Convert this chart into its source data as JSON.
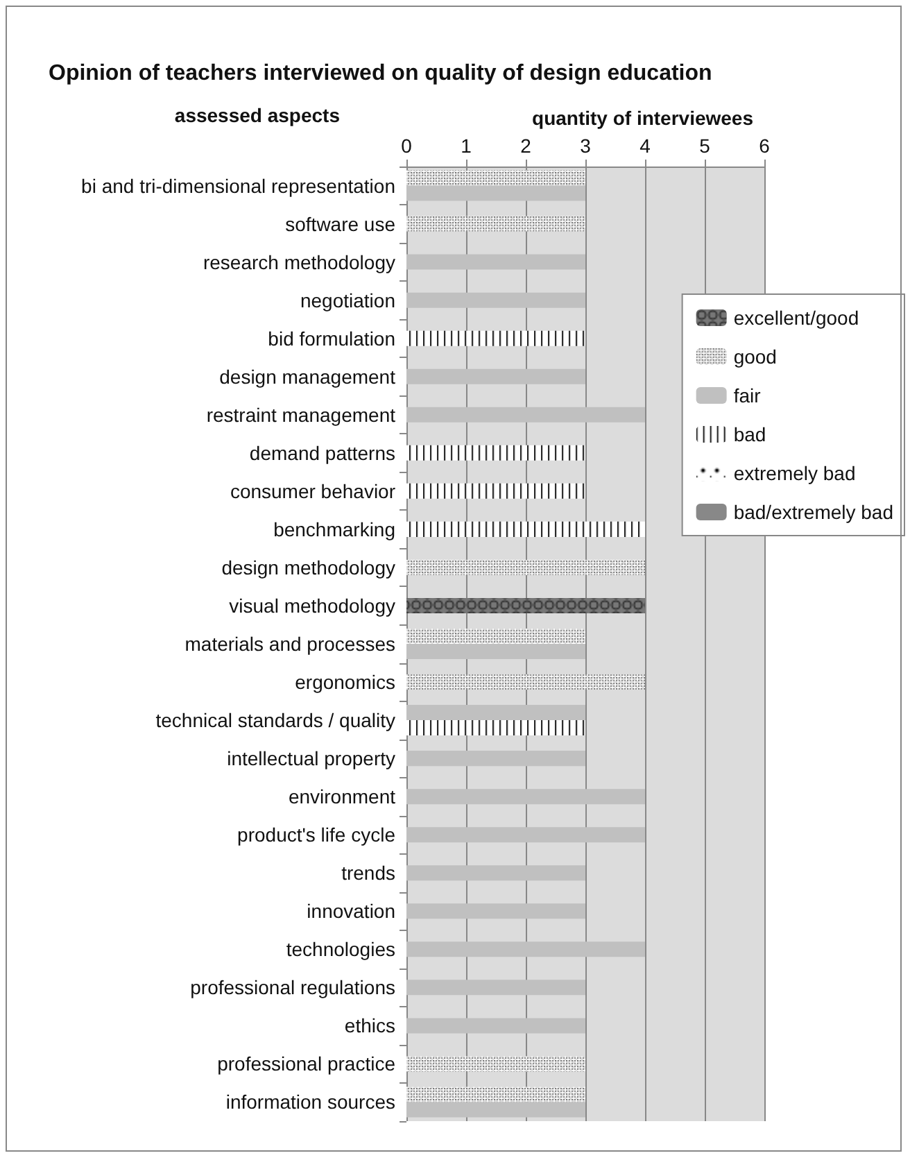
{
  "chart_data": {
    "type": "bar",
    "orientation": "horizontal",
    "title": "Opinion of teachers interviewed on quality of design education",
    "xlabel": "quantity of interviewees",
    "ylabel": "assessed aspects",
    "categories": [
      "bi and tri-dimensional representation",
      "software use",
      "research methodology",
      "negotiation",
      "bid formulation",
      "design management",
      "restraint management",
      "demand patterns",
      "consumer behavior",
      "benchmarking",
      "design methodology",
      "visual methodology",
      "materials and processes",
      "ergonomics",
      "technical standards / quality",
      "intellectual property",
      "environment",
      "product's life cycle",
      "trends",
      "innovation",
      "technologies",
      "professional regulations",
      "ethics",
      "professional practice",
      "information sources"
    ],
    "series": [
      {
        "name": "excellent/good",
        "color": "#777777",
        "values": [
          null,
          null,
          null,
          null,
          null,
          null,
          null,
          null,
          null,
          null,
          null,
          4,
          null,
          null,
          null,
          null,
          null,
          null,
          null,
          null,
          null,
          null,
          null,
          null,
          null
        ]
      },
      {
        "name": "good",
        "color": "#d8d8d8",
        "values": [
          3,
          3,
          null,
          null,
          null,
          null,
          null,
          null,
          null,
          null,
          4,
          null,
          3,
          4,
          null,
          null,
          null,
          null,
          null,
          null,
          null,
          null,
          null,
          3,
          3
        ]
      },
      {
        "name": "fair",
        "color": "#c0c0c0",
        "values": [
          3,
          null,
          3,
          3,
          null,
          3,
          4,
          null,
          null,
          null,
          null,
          null,
          3,
          null,
          3,
          3,
          4,
          4,
          3,
          3,
          4,
          3,
          3,
          null,
          3
        ]
      },
      {
        "name": "bad",
        "color": "#ffffff",
        "values": [
          null,
          null,
          null,
          null,
          3,
          null,
          null,
          3,
          3,
          4,
          null,
          null,
          null,
          null,
          3,
          null,
          null,
          null,
          null,
          null,
          null,
          null,
          null,
          null,
          null
        ]
      },
      {
        "name": "extremely bad",
        "color": "#ffffff",
        "values": [
          null,
          null,
          null,
          null,
          null,
          null,
          null,
          null,
          null,
          null,
          null,
          null,
          null,
          null,
          null,
          null,
          null,
          null,
          null,
          null,
          null,
          null,
          null,
          null,
          null
        ]
      },
      {
        "name": "bad/extremely bad",
        "color": "#888888",
        "values": [
          null,
          null,
          null,
          null,
          null,
          null,
          null,
          null,
          null,
          null,
          null,
          null,
          null,
          null,
          null,
          null,
          null,
          null,
          null,
          null,
          null,
          null,
          null,
          null,
          null
        ]
      }
    ],
    "xlim": [
      0,
      6
    ],
    "xticks": [
      0,
      1,
      2,
      3,
      4,
      5,
      6
    ],
    "grid": "x",
    "legend": "right"
  }
}
